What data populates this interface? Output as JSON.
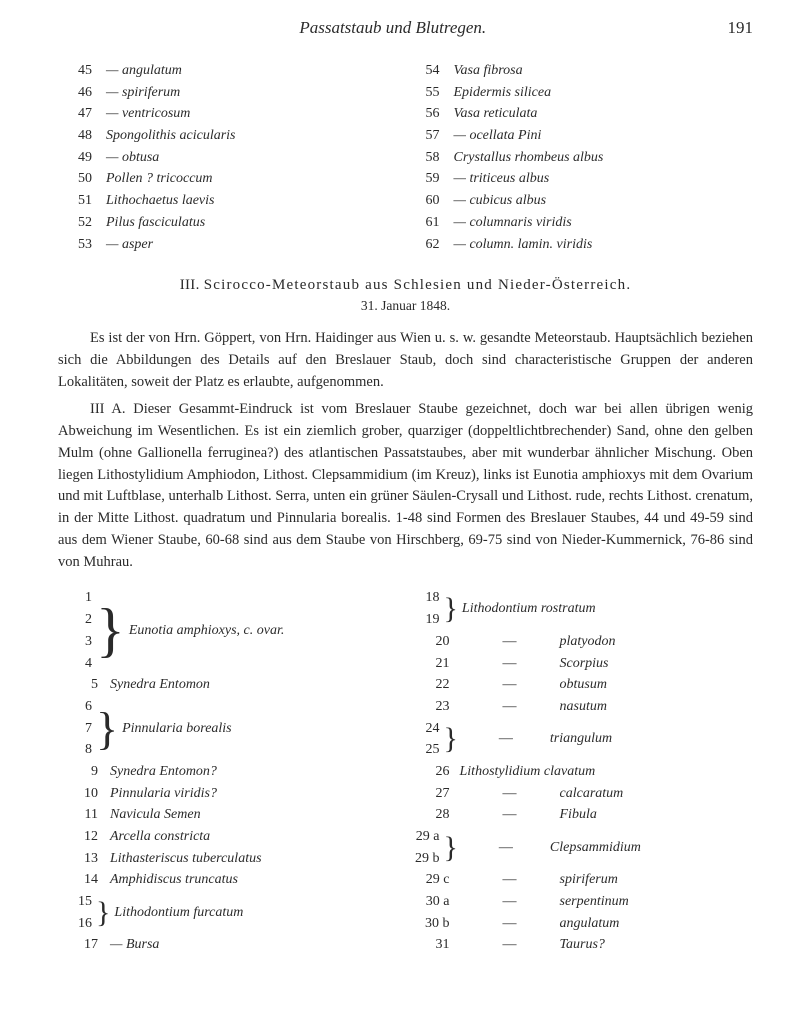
{
  "head": {
    "title": "Passatstaub und Blutregen.",
    "page": "191"
  },
  "top_left": [
    {
      "n": "45",
      "t": "— angulatum"
    },
    {
      "n": "46",
      "t": "— spiriferum"
    },
    {
      "n": "47",
      "t": "— ventricosum"
    },
    {
      "n": "48",
      "t": "Spongolithis acicularis"
    },
    {
      "n": "49",
      "t": "— obtusa"
    },
    {
      "n": "50",
      "t": "Pollen ? tricoccum"
    },
    {
      "n": "51",
      "t": "Lithochaetus laevis"
    },
    {
      "n": "52",
      "t": "Pilus fasciculatus"
    },
    {
      "n": "53",
      "t": "— asper"
    }
  ],
  "top_right": [
    {
      "n": "54",
      "t": "Vasa fibrosa"
    },
    {
      "n": "55",
      "t": "Epidermis silicea"
    },
    {
      "n": "56",
      "t": "Vasa reticulata"
    },
    {
      "n": "57",
      "t": "— ocellata Pini"
    },
    {
      "n": "58",
      "t": "Crystallus rhombeus albus"
    },
    {
      "n": "59",
      "t": "— triticeus albus"
    },
    {
      "n": "60",
      "t": "— cubicus albus"
    },
    {
      "n": "61",
      "t": "— columnaris viridis"
    },
    {
      "n": "62",
      "t": "— column. lamin. viridis"
    }
  ],
  "section": {
    "num": "III.",
    "title": "Scirocco-Meteorstaub aus Schlesien und Nieder-Österreich.",
    "sub": "31. Januar 1848."
  },
  "paras": {
    "p1": "Es ist der von Hrn. Göppert, von Hrn. Haidinger aus Wien u. s. w. gesandte Meteorstaub. Hauptsächlich beziehen sich die Abbildungen des Details auf den Breslauer Staub, doch sind characteristische Gruppen der anderen Lokalitäten, soweit der Platz es erlaubte, aufgenommen.",
    "p2": "III A. Dieser Gesammt-Eindruck ist vom Breslauer Staube gezeichnet, doch war bei allen übrigen wenig Abweichung im Wesentlichen. Es ist ein ziemlich grober, quarziger (doppeltlichtbrechender) Sand, ohne den gelben Mulm (ohne Gallionella ferruginea?) des atlantischen Passatstaubes, aber mit wunderbar ähnlicher Mischung. Oben liegen Lithostylidium Amphiodon, Lithost. Clepsammidium (im Kreuz), links ist Eunotia amphioxys mit dem Ovarium und mit Luftblase, unterhalb Lithost. Serra, unten ein grüner Säulen-Crysall und Lithost. rude, rechts Lithost. crenatum, in der Mitte Lithost. quadratum und Pinnularia borealis. 1-48 sind Formen des Breslauer Staubes, 44 und 49-59 sind aus dem Wiener Staube, 60-68 sind aus dem Staube von Hirschberg, 69-75 sind von Nieder-Kummernick, 76-86 sind von Muhrau."
  },
  "g1": {
    "nums": [
      "1",
      "2",
      "3",
      "4"
    ],
    "text": "Eunotia amphioxys, c. ovar."
  },
  "r5": {
    "n": "5",
    "t": "Synedra Entomon"
  },
  "g2": {
    "nums": [
      "6",
      "7",
      "8"
    ],
    "text": "Pinnularia borealis"
  },
  "r9": {
    "n": "9",
    "t": "Synedra Entomon?"
  },
  "r10": {
    "n": "10",
    "t": "Pinnularia viridis?"
  },
  "r11": {
    "n": "11",
    "t": "Navicula Semen"
  },
  "r12": {
    "n": "12",
    "t": "Arcella constricta"
  },
  "r13": {
    "n": "13",
    "t": "Lithasteriscus tuberculatus"
  },
  "r14": {
    "n": "14",
    "t": "Amphidiscus truncatus"
  },
  "g3": {
    "nums": [
      "15",
      "16"
    ],
    "text": "Lithodontium furcatum"
  },
  "r17": {
    "n": "17",
    "t": "— Bursa"
  },
  "g4": {
    "nums": [
      "18",
      "19"
    ],
    "text": "Lithodontium rostratum"
  },
  "r20": {
    "n": "20",
    "d": "—",
    "t": "platyodon"
  },
  "r21": {
    "n": "21",
    "d": "—",
    "t": "Scorpius"
  },
  "r22": {
    "n": "22",
    "d": "—",
    "t": "obtusum"
  },
  "r23": {
    "n": "23",
    "d": "—",
    "t": "nasutum"
  },
  "g5": {
    "nums": [
      "24",
      "25"
    ],
    "d": "—",
    "text": "triangulum"
  },
  "r26": {
    "n": "26",
    "t": "Lithostylidium clavatum"
  },
  "r27": {
    "n": "27",
    "d": "—",
    "t": "calcaratum"
  },
  "r28": {
    "n": "28",
    "d": "—",
    "t": "Fibula"
  },
  "g6": {
    "nums": [
      "29 a",
      "29 b"
    ],
    "d": "—",
    "text": "Clepsammidium"
  },
  "r29c": {
    "n": "29 c",
    "d": "—",
    "t": "spiriferum"
  },
  "r30a": {
    "n": "30 a",
    "d": "—",
    "t": "serpentinum"
  },
  "r30b": {
    "n": "30 b",
    "d": "—",
    "t": "angulatum"
  },
  "r31": {
    "n": "31",
    "d": "—",
    "t": "Taurus?"
  }
}
